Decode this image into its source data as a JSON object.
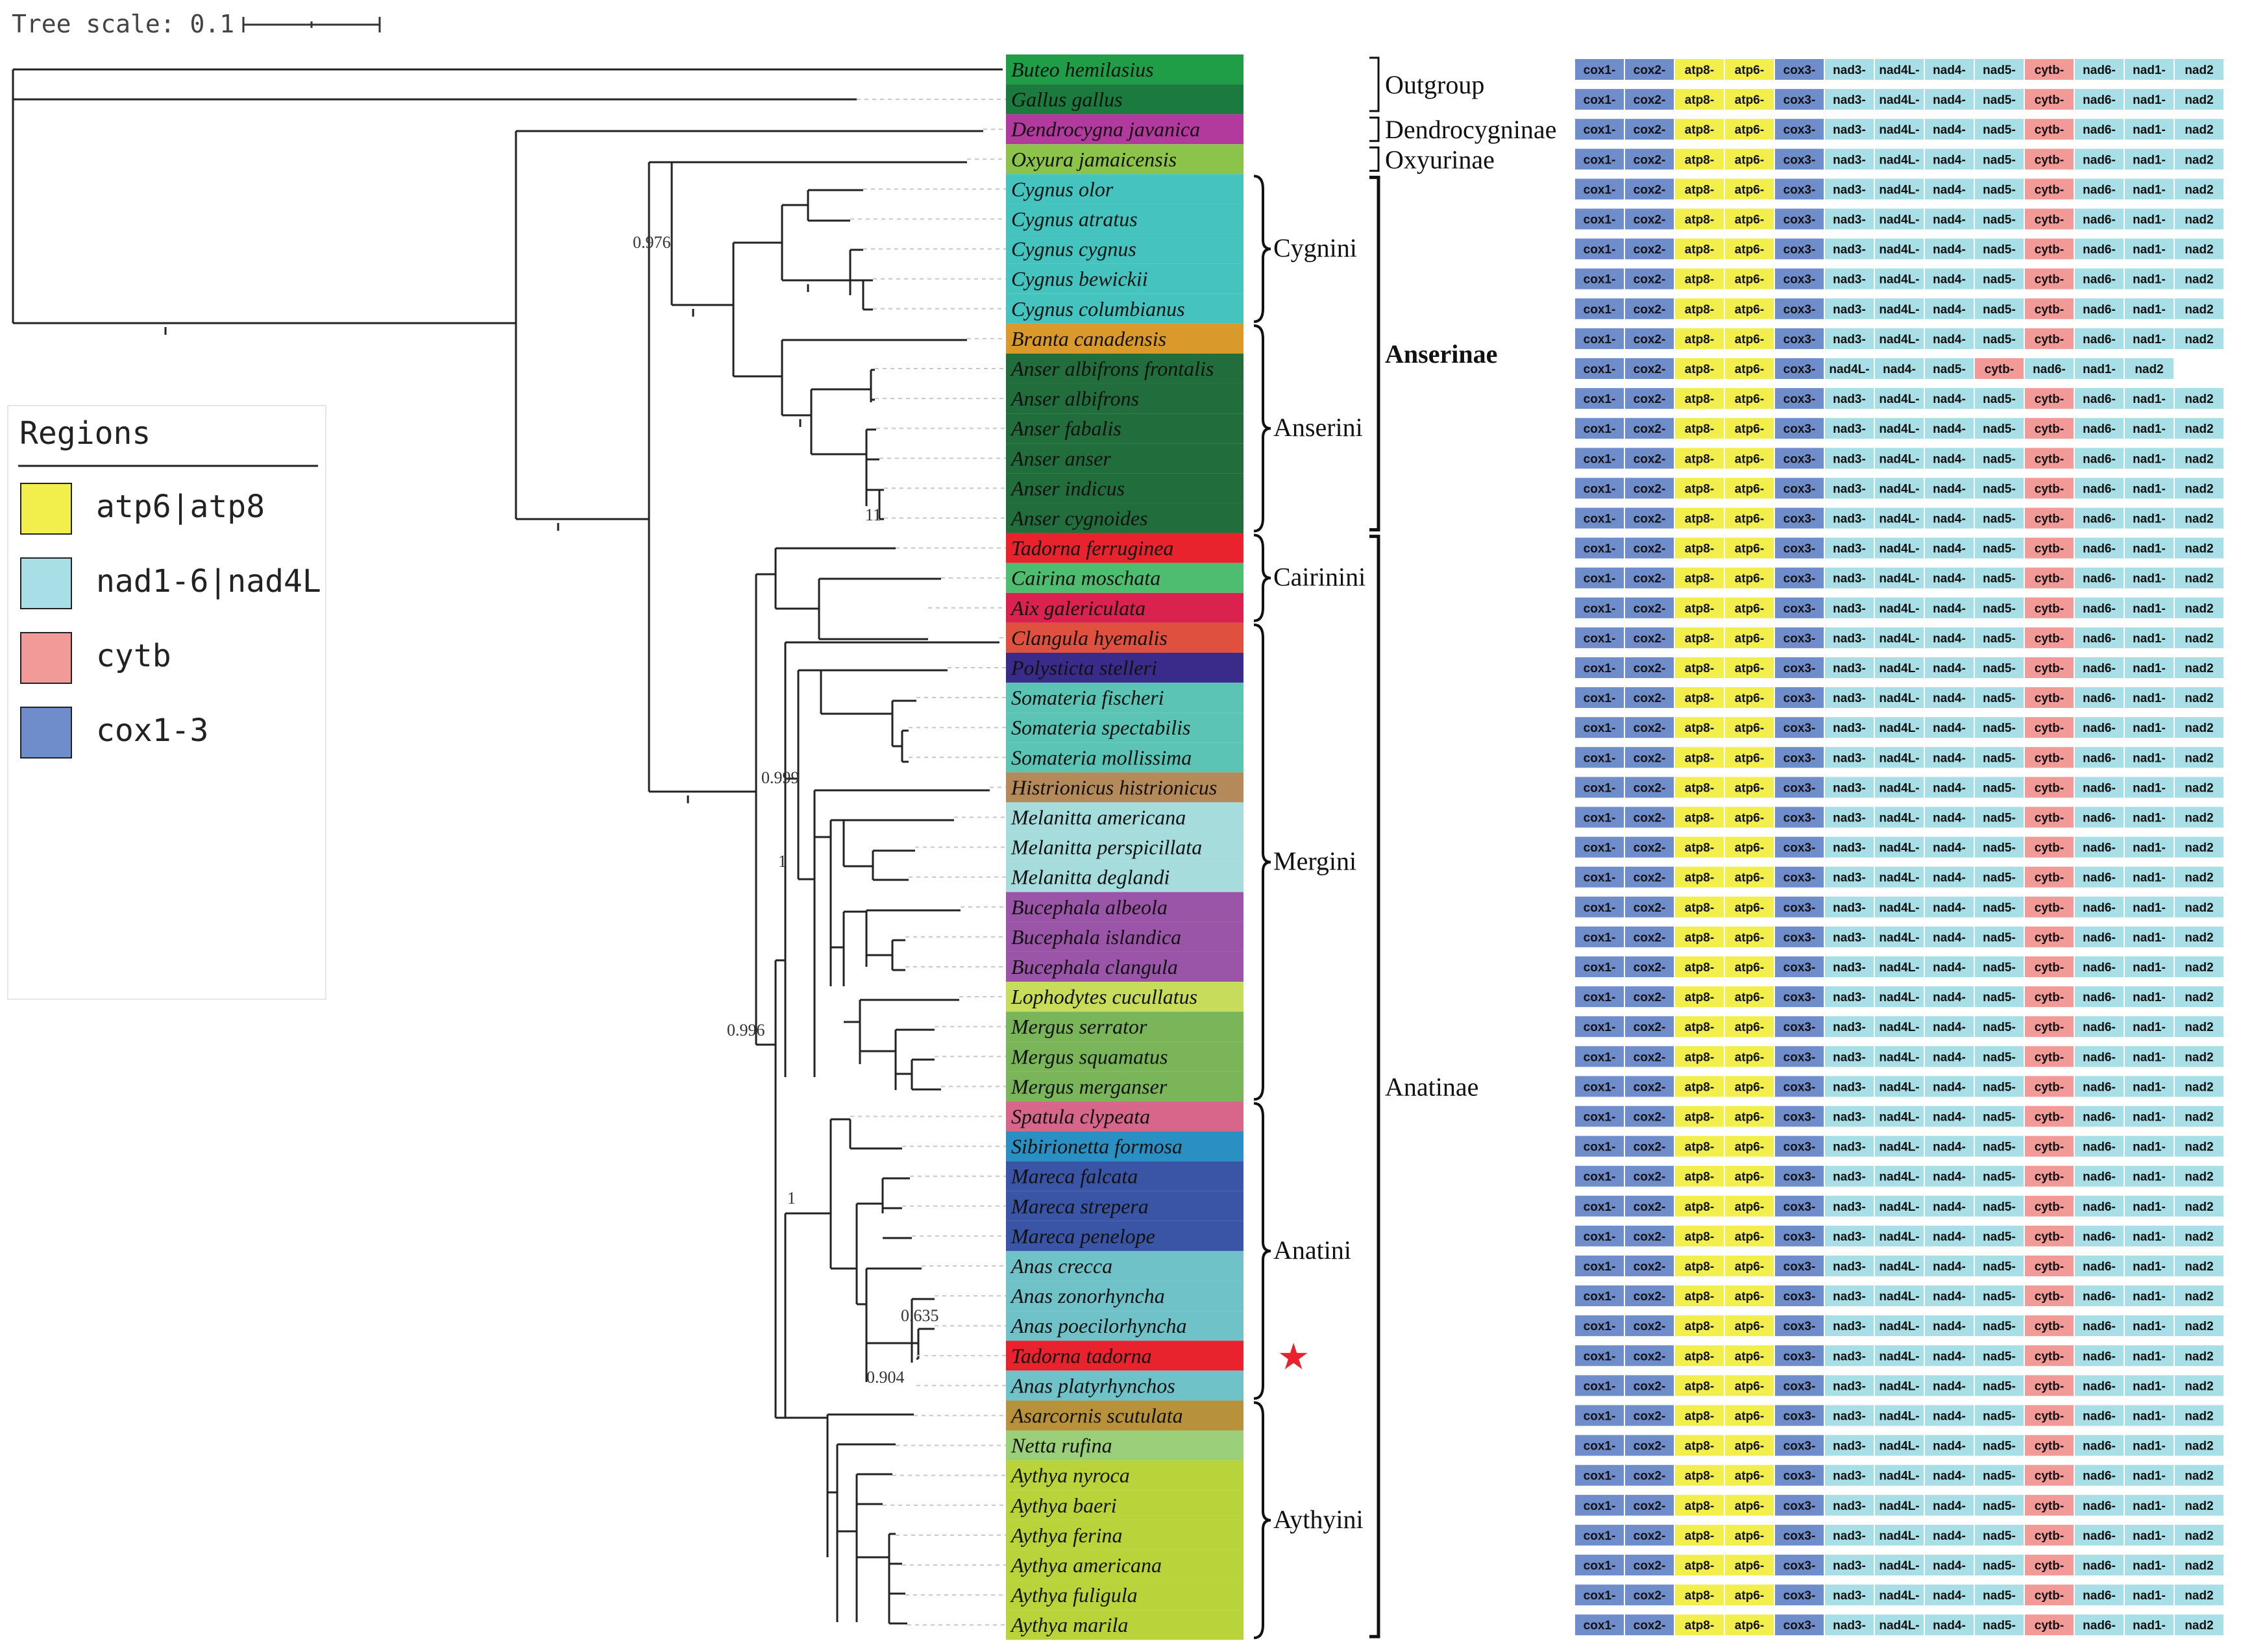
{
  "tree_scale": {
    "label": "Tree scale: 0.1"
  },
  "legend": {
    "title": "Regions",
    "items": [
      {
        "label": "atp6|atp8",
        "color": "#f2ef4d"
      },
      {
        "label": "nad1-6|nad4L",
        "color": "#a8dee6"
      },
      {
        "label": "cytb",
        "color": "#f29a98"
      },
      {
        "label": "cox1-3",
        "color": "#6f8ccb"
      }
    ]
  },
  "gene_colors": {
    "cox": "#6f8ccb",
    "atp": "#f2ef4d",
    "nad": "#a8dee6",
    "cytb": "#f29a98"
  },
  "gene_order_standard": [
    "cox1",
    "cox2",
    "atp8",
    "atp6",
    "cox3",
    "nad3",
    "nad4L",
    "nad4",
    "nad5",
    "cytb",
    "nad6",
    "nad1",
    "nad2"
  ],
  "gene_order_short": [
    "cox1",
    "cox2",
    "atp8",
    "atp6",
    "cox3",
    "nad4L",
    "nad4",
    "nad5",
    "cytb",
    "nad6",
    "nad1",
    "nad2"
  ],
  "species": [
    {
      "name": "Buteo hemilasius",
      "color": "#1f9e47",
      "genes": "standard"
    },
    {
      "name": "Gallus gallus",
      "color": "#1b7a3e",
      "genes": "standard"
    },
    {
      "name": "Dendrocygna javanica",
      "color": "#b2399d",
      "genes": "standard"
    },
    {
      "name": "Oxyura jamaicensis",
      "color": "#8cc34a",
      "genes": "standard"
    },
    {
      "name": "Cygnus olor",
      "color": "#45c4bf",
      "genes": "standard"
    },
    {
      "name": "Cygnus atratus",
      "color": "#45c4bf",
      "genes": "standard"
    },
    {
      "name": "Cygnus cygnus",
      "color": "#45c4bf",
      "genes": "standard"
    },
    {
      "name": "Cygnus bewickii",
      "color": "#45c4bf",
      "genes": "standard"
    },
    {
      "name": "Cygnus columbianus",
      "color": "#45c4bf",
      "genes": "standard"
    },
    {
      "name": "Branta canadensis",
      "color": "#d99a2b",
      "genes": "standard"
    },
    {
      "name": "Anser albifrons frontalis",
      "color": "#216d3c",
      "genes": "short"
    },
    {
      "name": "Anser albifrons",
      "color": "#216d3c",
      "genes": "standard"
    },
    {
      "name": "Anser fabalis",
      "color": "#216d3c",
      "genes": "standard"
    },
    {
      "name": "Anser anser",
      "color": "#216d3c",
      "genes": "standard"
    },
    {
      "name": "Anser indicus",
      "color": "#216d3c",
      "genes": "standard"
    },
    {
      "name": "Anser cygnoides",
      "color": "#216d3c",
      "genes": "standard"
    },
    {
      "name": "Tadorna ferruginea",
      "color": "#e8232e",
      "genes": "standard"
    },
    {
      "name": "Cairina moschata",
      "color": "#4fbd6f",
      "genes": "standard"
    },
    {
      "name": "Aix galericulata",
      "color": "#d9234e",
      "genes": "standard"
    },
    {
      "name": "Clangula hyemalis",
      "color": "#e0503f",
      "genes": "standard"
    },
    {
      "name": "Polysticta stelleri",
      "color": "#3a2b8a",
      "genes": "standard"
    },
    {
      "name": "Somateria fischeri",
      "color": "#5bc4b5",
      "genes": "standard"
    },
    {
      "name": "Somateria spectabilis",
      "color": "#5bc4b5",
      "genes": "standard"
    },
    {
      "name": "Somateria mollissima",
      "color": "#5bc4b5",
      "genes": "standard"
    },
    {
      "name": "Histrionicus histrionicus",
      "color": "#b58a5a",
      "genes": "standard"
    },
    {
      "name": "Melanitta americana",
      "color": "#a6dcdc",
      "genes": "standard"
    },
    {
      "name": "Melanitta perspicillata",
      "color": "#a6dcdc",
      "genes": "standard"
    },
    {
      "name": "Melanitta deglandi",
      "color": "#a6dcdc",
      "genes": "standard"
    },
    {
      "name": "Bucephala albeola",
      "color": "#9b55a8",
      "genes": "standard"
    },
    {
      "name": "Bucephala islandica",
      "color": "#9b55a8",
      "genes": "standard"
    },
    {
      "name": "Bucephala clangula",
      "color": "#9b55a8",
      "genes": "standard"
    },
    {
      "name": "Lophodytes cucullatus",
      "color": "#c6dc5a",
      "genes": "standard"
    },
    {
      "name": "Mergus serrator",
      "color": "#7ab55a",
      "genes": "standard"
    },
    {
      "name": "Mergus squamatus",
      "color": "#7ab55a",
      "genes": "standard"
    },
    {
      "name": "Mergus merganser",
      "color": "#7ab55a",
      "genes": "standard"
    },
    {
      "name": "Spatula clypeata",
      "color": "#d8668a",
      "genes": "standard"
    },
    {
      "name": "Sibirionetta formosa",
      "color": "#2a8fc2",
      "genes": "standard"
    },
    {
      "name": "Mareca falcata",
      "color": "#3a54a6",
      "genes": "standard"
    },
    {
      "name": "Mareca strepera",
      "color": "#3a54a6",
      "genes": "standard"
    },
    {
      "name": "Mareca penelope",
      "color": "#3a54a6",
      "genes": "standard"
    },
    {
      "name": "Anas crecca",
      "color": "#6fc2c8",
      "genes": "standard"
    },
    {
      "name": "Anas zonorhyncha",
      "color": "#6fc2c8",
      "genes": "standard"
    },
    {
      "name": "Anas poecilorhyncha",
      "color": "#6fc2c8",
      "genes": "standard"
    },
    {
      "name": "Tadorna tadorna",
      "color": "#e8232e",
      "genes": "standard"
    },
    {
      "name": "Anas platyrhynchos",
      "color": "#6fc2c8",
      "genes": "standard"
    },
    {
      "name": "Asarcornis scutulata",
      "color": "#b8923a",
      "genes": "standard"
    },
    {
      "name": "Netta rufina",
      "color": "#9ccf7a",
      "genes": "standard"
    },
    {
      "name": "Aythya nyroca",
      "color": "#b8d43a",
      "genes": "standard"
    },
    {
      "name": "Aythya baeri",
      "color": "#b8d43a",
      "genes": "standard"
    },
    {
      "name": "Aythya ferina",
      "color": "#b8d43a",
      "genes": "standard"
    },
    {
      "name": "Aythya americana",
      "color": "#b8d43a",
      "genes": "standard"
    },
    {
      "name": "Aythya fuligula",
      "color": "#b8d43a",
      "genes": "standard"
    },
    {
      "name": "Aythya marila",
      "color": "#b8d43a",
      "genes": "standard"
    }
  ],
  "tribes": [
    {
      "label": "Cygnini",
      "from": 4,
      "to": 8
    },
    {
      "label": "Anserini",
      "from": 9,
      "to": 15
    },
    {
      "label": "Cairinini",
      "from": 16,
      "to": 18
    },
    {
      "label": "Mergini",
      "from": 19,
      "to": 34
    },
    {
      "label": "Anatini",
      "from": 35,
      "to": 44
    },
    {
      "label": "Aythyini",
      "from": 45,
      "to": 52
    }
  ],
  "groups": [
    {
      "label": "Outgroup",
      "from": 0,
      "to": 1
    },
    {
      "label": "Dendrocygninae",
      "from": 2,
      "to": 2
    },
    {
      "label": "Oxyurinae",
      "from": 3,
      "to": 3
    },
    {
      "label": "Anserinae",
      "from": 4,
      "to": 15
    },
    {
      "label": "Anatinae",
      "from": 16,
      "to": 52
    }
  ],
  "support_values": {
    "v0976": "0.976",
    "v0999": "0.999",
    "v0996": "0.996",
    "v0635": "0.635",
    "v0904": "0.904",
    "v1": "1",
    "v11": "11"
  },
  "star_marker": {
    "species": "Tadorna tadorna",
    "symbol": "★",
    "color": "#e8232e"
  }
}
